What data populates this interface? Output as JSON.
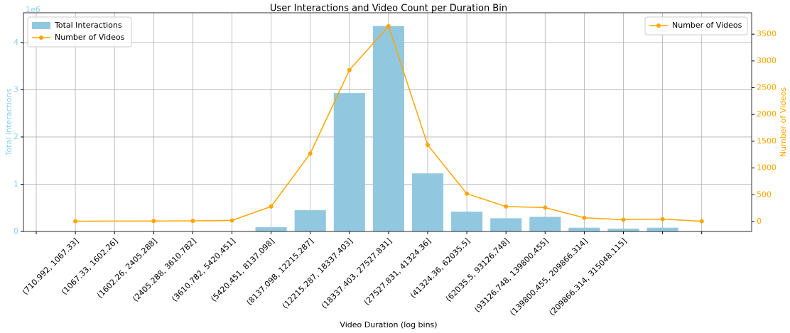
{
  "chart_data": {
    "type": "bar_line",
    "title": "User Interactions and Video Count per Duration Bin",
    "xlabel": "Video Duration (log bins)",
    "ylabel": "Total Interactions",
    "y2label": "Number of Videos",
    "y_offset_label": "1e6",
    "categories": [
      null,
      "(710.992, 1067.33]",
      "(1067.33, 1602.26]",
      "(1602.26, 2405.288]",
      "(2405.288, 3610.782]",
      "(3610.782, 5420.451]",
      "(5420.451, 8137.098]",
      "(8137.098, 12215.287]",
      "(12215.287, 18337.403]",
      "(18337.403, 27527.831]",
      "(27527.831, 41324.36]",
      "(41324.36, 62035.5]",
      "(62035.5, 93126.748]",
      "(93126.748, 139800.455]",
      "(139800.455, 209866.314]",
      "(209866.314, 315048.115]",
      null,
      null
    ],
    "series": [
      {
        "name": "Total Interactions",
        "type": "bar",
        "color": "#92c8df",
        "values": [
          0,
          0,
          0,
          0,
          0,
          0,
          90000,
          450000,
          2930000,
          4350000,
          1230000,
          420000,
          280000,
          310000,
          80000,
          60000,
          80000,
          5000
        ]
      },
      {
        "name": "Number of Videos",
        "type": "line",
        "color": "#ffa500",
        "axis": "y2",
        "x": [
          1,
          3,
          4,
          5,
          6,
          7,
          8,
          9,
          10,
          11,
          12,
          13,
          14,
          15,
          16,
          17
        ],
        "values": [
          5,
          10,
          12,
          20,
          280,
          1270,
          2830,
          3650,
          1430,
          520,
          280,
          260,
          70,
          35,
          45,
          5
        ]
      }
    ],
    "ylim": [
      0,
      4630000
    ],
    "yticks": [
      {
        "value": 0,
        "label": "0"
      },
      {
        "value": 1000000,
        "label": "1"
      },
      {
        "value": 2000000,
        "label": "2"
      },
      {
        "value": 3000000,
        "label": "3"
      },
      {
        "value": 4000000,
        "label": "4"
      }
    ],
    "y2lim": [
      -186,
      3900
    ],
    "y2ticks": [
      0,
      500,
      1000,
      1500,
      2000,
      2500,
      3000,
      3500
    ],
    "grid": true,
    "legends": [
      {
        "loc": "upper left",
        "series": [
          0,
          1
        ]
      },
      {
        "loc": "upper right",
        "series": [
          1
        ]
      }
    ]
  }
}
